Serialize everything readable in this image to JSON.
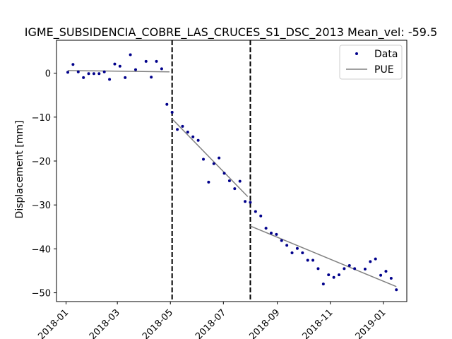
{
  "chart_data": {
    "type": "scatter",
    "title": "IGME_SUBSIDENCIA_COBRE_LAS_CRUCES_S1_DSC_2013     Mean_vel: -59.5",
    "xlabel": "",
    "ylabel": "Displacement [mm]",
    "xlim": [
      "2017-12-21",
      "2019-01-28"
    ],
    "ylim": [
      -52,
      7.5
    ],
    "grid": false,
    "legend_position": "upper right",
    "x_ticks": [
      "2018-01-01",
      "2018-03-01",
      "2018-05-01",
      "2018-07-01",
      "2018-09-01",
      "2018-11-01",
      "2019-01-01"
    ],
    "x_tick_labels": [
      "2018-01",
      "2018-03",
      "2018-05",
      "2018-07",
      "2018-09",
      "2018-11",
      "2019-01"
    ],
    "y_ticks": [
      0,
      -10,
      -20,
      -30,
      -40,
      -50
    ],
    "y_tick_labels": [
      "0",
      "−10",
      "−20",
      "−30",
      "−40",
      "−50"
    ],
    "breakpoints": [
      "2018-05-03",
      "2018-08-01"
    ],
    "series": [
      {
        "name": "Data",
        "kind": "scatter",
        "color": "#00008b",
        "points": [
          [
            "2018-01-03",
            0.2
          ],
          [
            "2018-01-09",
            2.0
          ],
          [
            "2018-01-15",
            0.3
          ],
          [
            "2018-01-21",
            -1.0
          ],
          [
            "2018-01-27",
            -0.1
          ],
          [
            "2018-02-02",
            -0.1
          ],
          [
            "2018-02-08",
            -0.1
          ],
          [
            "2018-02-14",
            0.3
          ],
          [
            "2018-02-20",
            -1.4
          ],
          [
            "2018-02-26",
            2.1
          ],
          [
            "2018-03-04",
            1.6
          ],
          [
            "2018-03-10",
            -1.0
          ],
          [
            "2018-03-16",
            4.2
          ],
          [
            "2018-03-22",
            0.8
          ],
          [
            "2018-04-03",
            2.7
          ],
          [
            "2018-04-09",
            -0.9
          ],
          [
            "2018-04-15",
            2.7
          ],
          [
            "2018-04-21",
            1.0
          ],
          [
            "2018-04-27",
            -7.1
          ],
          [
            "2018-05-03",
            -8.9
          ],
          [
            "2018-05-09",
            -12.8
          ],
          [
            "2018-05-15",
            -12.1
          ],
          [
            "2018-05-21",
            -13.4
          ],
          [
            "2018-05-27",
            -14.5
          ],
          [
            "2018-06-02",
            -15.3
          ],
          [
            "2018-06-08",
            -19.6
          ],
          [
            "2018-06-14",
            -24.8
          ],
          [
            "2018-06-20",
            -20.6
          ],
          [
            "2018-06-26",
            -19.3
          ],
          [
            "2018-07-02",
            -22.8
          ],
          [
            "2018-07-08",
            -24.5
          ],
          [
            "2018-07-14",
            -26.3
          ],
          [
            "2018-07-20",
            -24.6
          ],
          [
            "2018-07-26",
            -29.2
          ],
          [
            "2018-08-01",
            -29.4
          ],
          [
            "2018-08-07",
            -31.5
          ],
          [
            "2018-08-13",
            -32.5
          ],
          [
            "2018-08-19",
            -35.3
          ],
          [
            "2018-08-25",
            -36.4
          ],
          [
            "2018-08-31",
            -36.7
          ],
          [
            "2018-09-06",
            -38.1
          ],
          [
            "2018-09-12",
            -39.2
          ],
          [
            "2018-09-18",
            -40.9
          ],
          [
            "2018-09-24",
            -39.9
          ],
          [
            "2018-09-30",
            -40.9
          ],
          [
            "2018-10-06",
            -42.6
          ],
          [
            "2018-10-12",
            -42.6
          ],
          [
            "2018-10-18",
            -44.5
          ],
          [
            "2018-10-24",
            -48.0
          ],
          [
            "2018-10-30",
            -45.9
          ],
          [
            "2018-11-05",
            -46.5
          ],
          [
            "2018-11-11",
            -45.9
          ],
          [
            "2018-11-17",
            -44.5
          ],
          [
            "2018-11-23",
            -43.8
          ],
          [
            "2018-11-29",
            -44.5
          ],
          [
            "2018-12-11",
            -44.6
          ],
          [
            "2018-12-17",
            -42.9
          ],
          [
            "2018-12-23",
            -42.3
          ],
          [
            "2018-12-29",
            -46.0
          ],
          [
            "2019-01-04",
            -45.1
          ],
          [
            "2019-01-10",
            -46.7
          ],
          [
            "2019-01-16",
            -49.3
          ]
        ]
      },
      {
        "name": "PUE",
        "kind": "line",
        "color": "#808080",
        "segments": [
          [
            [
              "2018-01-03",
              0.6
            ],
            [
              "2018-04-30",
              0.3
            ]
          ],
          [
            [
              "2018-05-03",
              -10.4
            ],
            [
              "2018-07-29",
              -28.1
            ]
          ],
          [
            [
              "2018-08-01",
              -34.8
            ],
            [
              "2019-01-16",
              -48.6
            ]
          ]
        ]
      }
    ]
  }
}
